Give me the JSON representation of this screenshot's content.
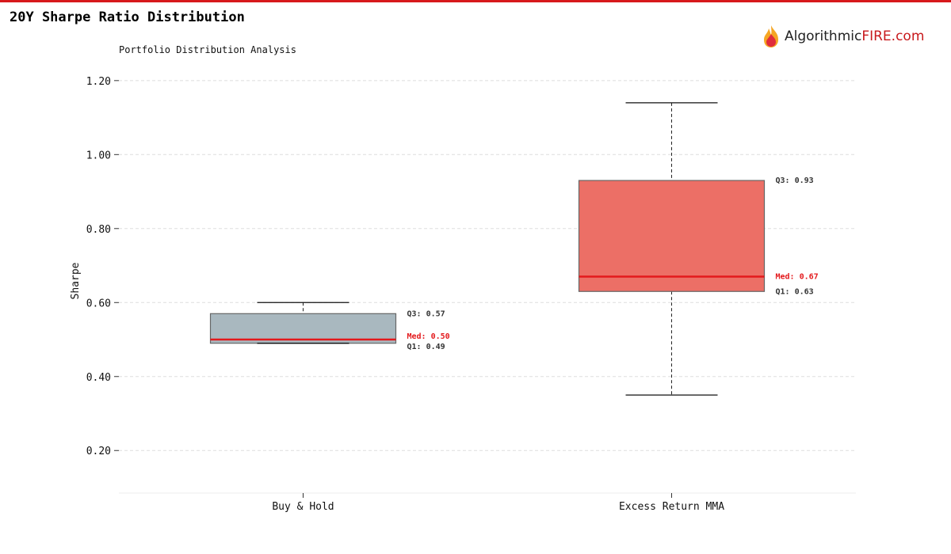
{
  "title": "20Y Sharpe Ratio Distribution",
  "subtitle": "Portfolio Distribution Analysis",
  "logo": {
    "text_a": "Algorithmic",
    "text_b": "FIRE.com"
  },
  "chart_data": {
    "type": "box",
    "title": "20Y Sharpe Ratio Distribution",
    "subtitle": "Portfolio Distribution Analysis",
    "xlabel": "",
    "ylabel": "Sharpe",
    "ylim": [
      0.085,
      1.236
    ],
    "yticks": [
      0.2,
      0.4,
      0.6,
      0.8,
      1.0,
      1.2
    ],
    "ytick_labels": [
      "0.20",
      "0.40",
      "0.60",
      "0.80",
      "1.00",
      "1.20"
    ],
    "grid": true,
    "categories": [
      "Buy & Hold",
      "Excess Return MMA"
    ],
    "boxes": [
      {
        "category": "Buy & Hold",
        "whisker_low": 0.49,
        "q1": 0.49,
        "median": 0.5,
        "q3": 0.57,
        "whisker_high": 0.6,
        "color": "#a9b8bf",
        "labels": {
          "q3": "Q3: 0.57",
          "median": "Med: 0.50",
          "q1": "Q1: 0.49"
        }
      },
      {
        "category": "Excess Return MMA",
        "whisker_low": 0.35,
        "q1": 0.63,
        "median": 0.67,
        "q3": 0.93,
        "whisker_high": 1.14,
        "color": "#ec6f66",
        "labels": {
          "q3": "Q3: 0.93",
          "median": "Med: 0.67",
          "q1": "Q1: 0.63"
        }
      }
    ],
    "median_color": "#e3191c"
  }
}
